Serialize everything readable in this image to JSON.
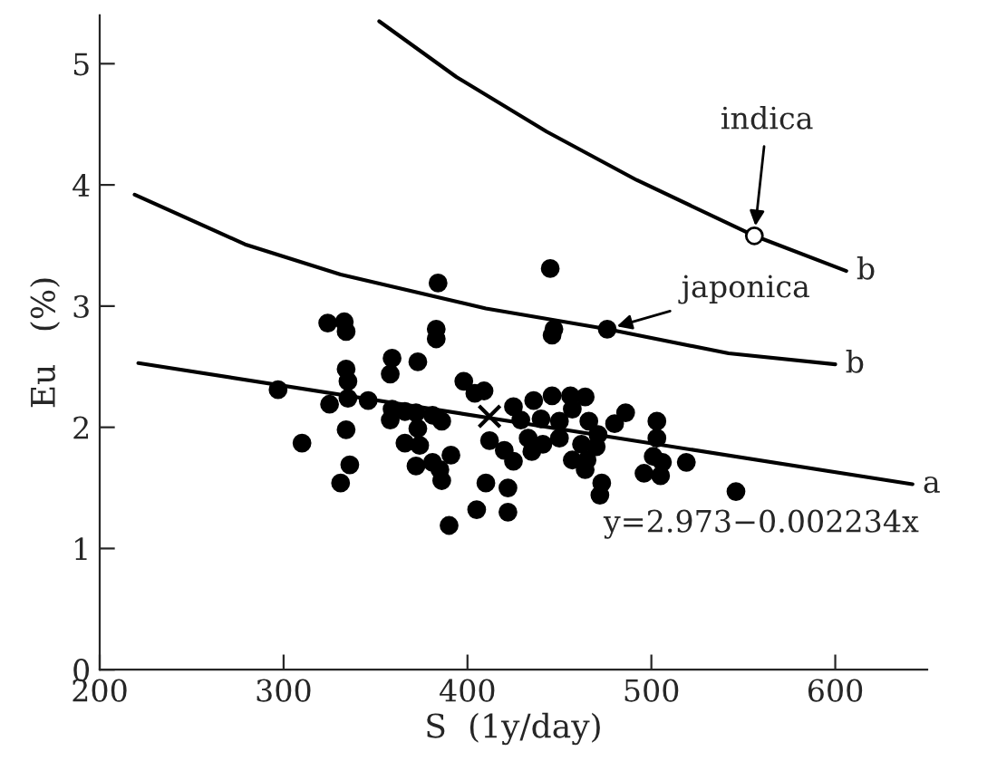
{
  "chart_data": {
    "type": "scatter",
    "xlabel": "S  (1y/day)",
    "ylabel": "Eu   (%)",
    "xlim": [
      200,
      650
    ],
    "ylim": [
      0,
      5.4
    ],
    "xticks": [
      200,
      300,
      400,
      500,
      600
    ],
    "yticks": [
      0,
      1,
      2,
      3,
      4,
      5
    ],
    "grid": false,
    "legend": false,
    "annotations": [
      {
        "text": "indica",
        "x": 556,
        "y": 3.58
      },
      {
        "text": "japonica",
        "x": 476,
        "y": 2.81
      },
      "y=2.973−0.002234x"
    ],
    "series": [
      {
        "marker": "circle",
        "color": "#000000",
        "x": [
          297,
          310,
          324,
          333,
          334,
          325,
          334,
          335,
          335,
          334,
          336,
          331,
          346,
          359,
          358,
          359,
          358,
          366,
          373,
          372,
          373,
          366,
          374,
          372,
          384,
          383,
          383,
          381,
          386,
          381,
          385,
          386,
          391,
          390,
          398,
          404,
          409,
          405,
          410,
          412,
          420,
          422,
          422,
          425,
          425,
          429,
          436,
          433,
          435,
          440,
          441,
          445,
          446,
          447,
          446,
          450,
          450,
          456,
          457,
          457,
          462,
          464,
          464,
          465,
          466,
          471,
          470,
          473,
          472,
          480,
          486,
          496,
          503,
          503,
          501,
          506,
          505,
          519,
          546
        ],
        "values": [
          2.31,
          1.87,
          2.86,
          2.87,
          2.79,
          2.19,
          2.48,
          2.38,
          2.24,
          1.98,
          1.69,
          1.54,
          2.22,
          2.57,
          2.44,
          2.15,
          2.06,
          2.13,
          2.54,
          2.12,
          1.99,
          1.87,
          1.85,
          1.68,
          3.19,
          2.81,
          2.73,
          2.1,
          2.05,
          1.71,
          1.65,
          1.56,
          1.77,
          1.19,
          2.38,
          2.28,
          2.3,
          1.32,
          1.54,
          1.89,
          1.81,
          1.5,
          1.3,
          1.72,
          2.17,
          2.06,
          2.22,
          1.91,
          1.8,
          2.07,
          1.86,
          3.31,
          2.76,
          2.81,
          2.26,
          2.05,
          1.91,
          2.26,
          2.15,
          1.73,
          1.86,
          2.25,
          1.65,
          1.73,
          2.05,
          1.94,
          1.84,
          1.54,
          1.44,
          2.03,
          2.12,
          1.62,
          2.05,
          1.91,
          1.76,
          1.71,
          1.6,
          1.71,
          1.47
        ]
      },
      {
        "type": "scatter",
        "marker": "cross",
        "color": "#000000",
        "x": [
          412
        ],
        "values": [
          2.09
        ]
      },
      {
        "type": "line",
        "name": "a",
        "color": "#000000",
        "line_style": "solid",
        "marker": "none",
        "x": [
          221,
          642
        ],
        "values": [
          2.53,
          1.53
        ]
      },
      {
        "type": "line",
        "name": "b",
        "color": "#000000",
        "line_style": "solid",
        "marker": "none",
        "x": [
          219,
          279,
          331,
          410,
          476,
          542,
          600
        ],
        "values": [
          3.92,
          3.51,
          3.26,
          2.98,
          2.81,
          2.61,
          2.52
        ]
      },
      {
        "type": "line",
        "name": "b",
        "color": "#000000",
        "line_style": "solid",
        "marker": "none",
        "x": [
          352,
          394,
          443,
          492,
          556,
          606
        ],
        "values": [
          5.35,
          4.89,
          4.44,
          4.04,
          3.58,
          3.29
        ]
      },
      {
        "type": "scatter",
        "marker": "circle",
        "color": "#000000",
        "x": [
          476
        ],
        "values": [
          2.81
        ]
      },
      {
        "type": "scatter",
        "marker": "circle",
        "color": "#ffffff",
        "x": [
          556
        ],
        "values": [
          3.58
        ]
      }
    ]
  }
}
